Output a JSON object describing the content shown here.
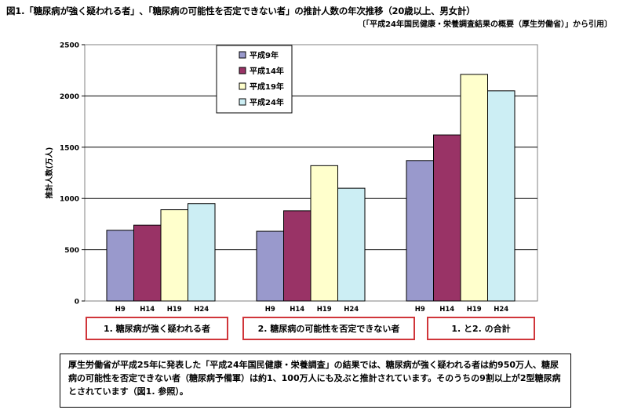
{
  "header": {
    "title": "図1.「糖尿病が強く疑われる者」､「糖尿病の可能性を否定できない者」の推計人数の年次推移（20歳以上、男女計）",
    "source": "〔「平成24年国民健康・栄養調査結果の概要（厚生労働省）」から引用〕"
  },
  "chart_data": {
    "type": "bar",
    "ylabel": "推計人数(万人)",
    "ylim": [
      0,
      2500
    ],
    "yticks": [
      0,
      500,
      1000,
      1500,
      2000,
      2500
    ],
    "grid": true,
    "legend_position": "top-left",
    "series": [
      {
        "name": "平成9年",
        "color": "#9999cc"
      },
      {
        "name": "平成14年",
        "color": "#993366"
      },
      {
        "name": "平成19年",
        "color": "#ffffcc"
      },
      {
        "name": "平成24年",
        "color": "#cceef4"
      }
    ],
    "groups": [
      {
        "label": "1. 糖尿病が強く疑われる者",
        "categories": [
          "H9",
          "H14",
          "H19",
          "H24"
        ],
        "values": [
          690,
          740,
          890,
          950
        ]
      },
      {
        "label": "2. 糖尿病の可能性を否定できない者",
        "categories": [
          "H9",
          "H14",
          "H19",
          "H24"
        ],
        "values": [
          680,
          880,
          1320,
          1100
        ]
      },
      {
        "label": "1. と2. の合計",
        "categories": [
          "H9",
          "H14",
          "H19",
          "H24"
        ],
        "values": [
          1370,
          1620,
          2210,
          2050
        ]
      }
    ]
  },
  "note": "厚生労働省が平成25年に発表した「平成24年国民健康・栄養調査」の結果では、糖尿病が強く疑われる者は約950万人、糖尿病の可能性を否定できない者（糖尿病予備軍）は約1、100万人にも及ぶと推計されています。そのうちの9割以上が2型糖尿病とされています（図1. 参照）。"
}
